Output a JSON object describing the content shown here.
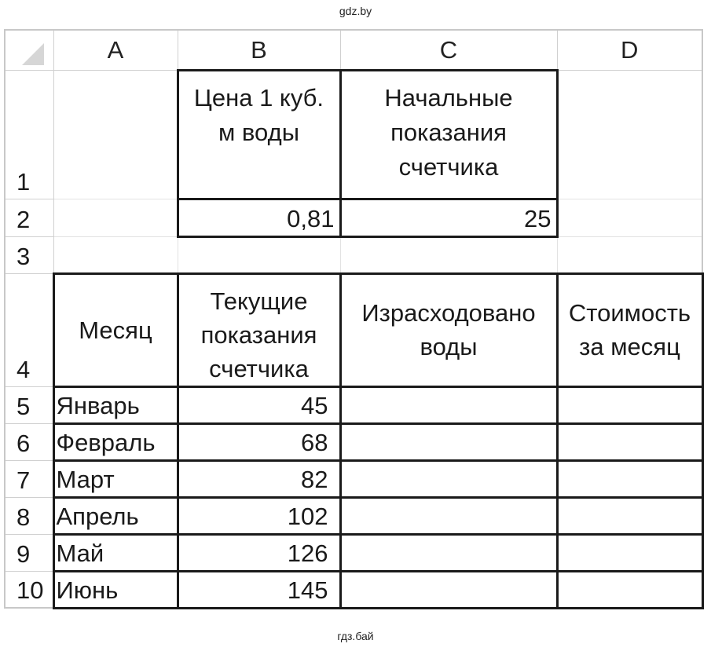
{
  "watermark_top": "gdz.by",
  "watermark_bottom": "гдз.бай",
  "columns": [
    "A",
    "B",
    "C",
    "D"
  ],
  "rows": [
    "1",
    "2",
    "3",
    "4",
    "5",
    "6",
    "7",
    "8",
    "9",
    "10"
  ],
  "cells": {
    "B1": "Цена 1 куб. м воды",
    "C1": "Начальные показания счетчика",
    "B2": "0,81",
    "C2": "25",
    "A4": "Месяц",
    "B4": "Текущие показания счетчика",
    "C4": "Израсходовано воды",
    "D4": "Стоимость за месяц"
  },
  "months": [
    {
      "month": "Январь",
      "reading": "45"
    },
    {
      "month": "Февраль",
      "reading": "68"
    },
    {
      "month": "Март",
      "reading": "82"
    },
    {
      "month": "Апрель",
      "reading": "102"
    },
    {
      "month": "Май",
      "reading": "126"
    },
    {
      "month": "Июнь",
      "reading": "145"
    }
  ]
}
